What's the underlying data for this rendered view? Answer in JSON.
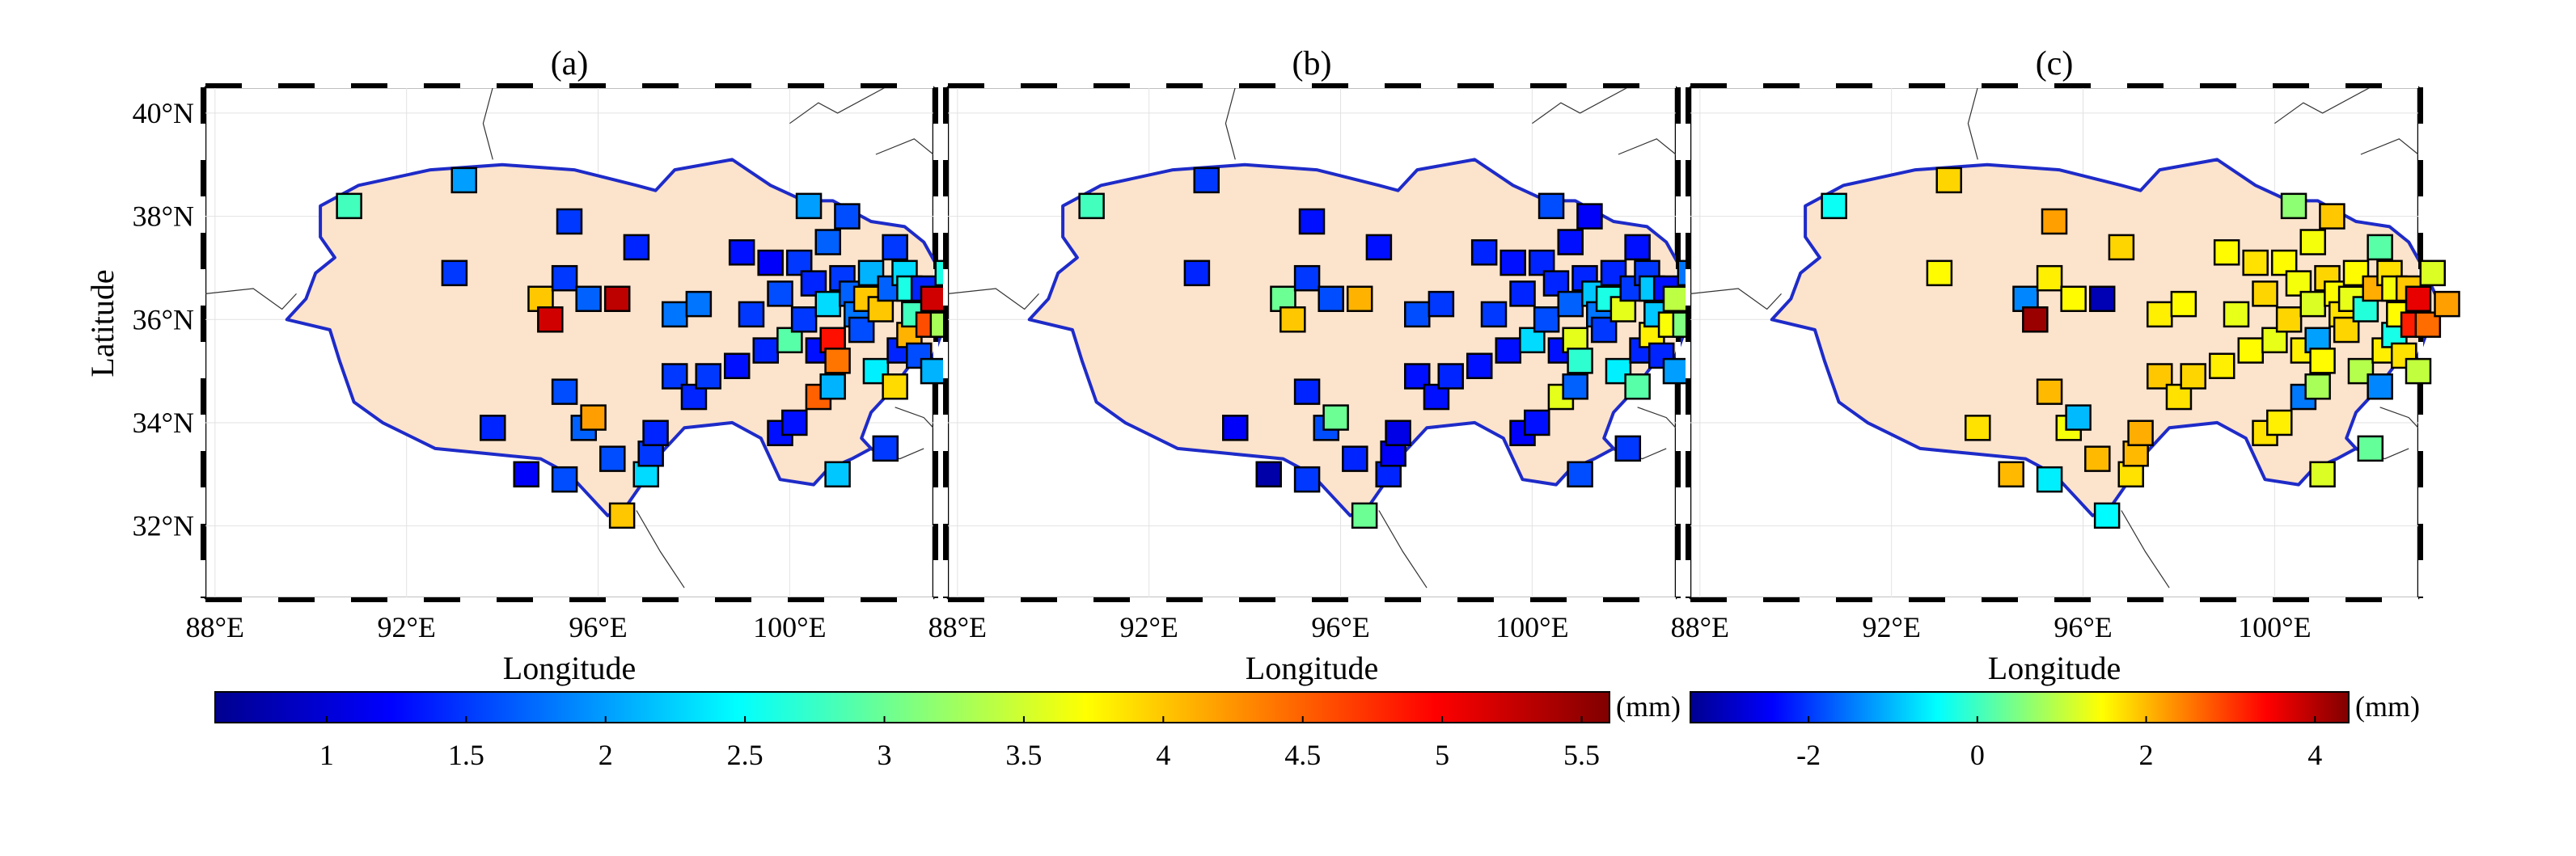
{
  "figure": {
    "panels": [
      {
        "title": "(a)",
        "colorbar": "amplitude"
      },
      {
        "title": "(b)",
        "colorbar": "amplitude"
      },
      {
        "title": "(c)",
        "colorbar": "difference"
      }
    ],
    "ylabel": "Latitude",
    "xlabel": "Longitude",
    "xticks": [
      "88°E",
      "92°E",
      "96°E",
      "100°E"
    ],
    "xtick_values": [
      88,
      92,
      96,
      100
    ],
    "yticks": [
      "40°N",
      "38°N",
      "36°N",
      "34°N",
      "32°N"
    ],
    "ytick_values": [
      40,
      38,
      36,
      34,
      32
    ],
    "lon_range": [
      87.8,
      103.0
    ],
    "lat_range": [
      30.6,
      40.5
    ],
    "region_fill": "#fce3cc",
    "region_outline": "#1e2bc8",
    "colorbars": {
      "amplitude": {
        "unit": "(mm)",
        "range": [
          0.6,
          5.6
        ],
        "ticks": [
          "1",
          "1.5",
          "2",
          "2.5",
          "3",
          "3.5",
          "4",
          "4.5",
          "5",
          "5.5"
        ],
        "tick_values": [
          1,
          1.5,
          2,
          2.5,
          3,
          3.5,
          4,
          4.5,
          5,
          5.5
        ]
      },
      "difference": {
        "unit": "(mm)",
        "range": [
          -3.4,
          4.4
        ],
        "ticks": [
          "-2",
          "0",
          "2",
          "4"
        ],
        "tick_values": [
          -2,
          0,
          2,
          4
        ]
      }
    },
    "colormap": "jet"
  },
  "chart_data": {
    "type": "scatter",
    "marker": "square",
    "x_label": "Longitude",
    "y_label": "Latitude",
    "stations": [
      {
        "lon": 90.8,
        "lat": 38.2,
        "a": 2.8,
        "b": 2.8,
        "c": -0.4
      },
      {
        "lon": 93.2,
        "lat": 38.7,
        "a": 2.0,
        "b": 1.5,
        "c": 1.8
      },
      {
        "lon": 93.0,
        "lat": 36.9,
        "a": 1.5,
        "b": 1.4,
        "c": 1.5
      },
      {
        "lon": 93.8,
        "lat": 33.9,
        "a": 1.4,
        "b": 1.2,
        "c": 1.7
      },
      {
        "lon": 94.5,
        "lat": 33.0,
        "a": 1.2,
        "b": 0.8,
        "c": 2.0
      },
      {
        "lon": 94.8,
        "lat": 36.4,
        "a": 4.0,
        "b": 3.0,
        "c": -1.4
      },
      {
        "lon": 95.0,
        "lat": 36.0,
        "a": 5.2,
        "b": 4.0,
        "c": 4.2
      },
      {
        "lon": 95.3,
        "lat": 36.8,
        "a": 1.5,
        "b": 1.5,
        "c": 1.6
      },
      {
        "lon": 95.4,
        "lat": 37.9,
        "a": 1.5,
        "b": 1.3,
        "c": 2.2
      },
      {
        "lon": 95.3,
        "lat": 34.6,
        "a": 1.6,
        "b": 1.4,
        "c": 2.0
      },
      {
        "lon": 95.3,
        "lat": 32.9,
        "a": 1.6,
        "b": 1.5,
        "c": -0.6
      },
      {
        "lon": 95.7,
        "lat": 33.9,
        "a": 1.7,
        "b": 1.6,
        "c": 1.4
      },
      {
        "lon": 95.9,
        "lat": 34.1,
        "a": 4.2,
        "b": 3.0,
        "c": -1.0
      },
      {
        "lon": 95.8,
        "lat": 36.4,
        "a": 1.7,
        "b": 1.6,
        "c": 1.5
      },
      {
        "lon": 96.4,
        "lat": 36.4,
        "a": 5.3,
        "b": 4.1,
        "c": -3.0
      },
      {
        "lon": 96.3,
        "lat": 33.3,
        "a": 1.6,
        "b": 1.4,
        "c": 2.0
      },
      {
        "lon": 96.5,
        "lat": 32.2,
        "a": 4.0,
        "b": 3.0,
        "c": -0.5
      },
      {
        "lon": 96.8,
        "lat": 37.4,
        "a": 1.4,
        "b": 1.3,
        "c": 1.8
      },
      {
        "lon": 97.0,
        "lat": 33.0,
        "a": 2.3,
        "b": 1.4,
        "c": 1.7
      },
      {
        "lon": 97.1,
        "lat": 33.4,
        "a": 1.5,
        "b": 1.2,
        "c": 2.0
      },
      {
        "lon": 97.2,
        "lat": 33.8,
        "a": 1.4,
        "b": 1.1,
        "c": 2.1
      },
      {
        "lon": 97.6,
        "lat": 36.1,
        "a": 1.8,
        "b": 1.6,
        "c": 1.6
      },
      {
        "lon": 97.6,
        "lat": 34.9,
        "a": 1.5,
        "b": 1.3,
        "c": 1.9
      },
      {
        "lon": 98.0,
        "lat": 34.5,
        "a": 1.4,
        "b": 1.3,
        "c": 1.7
      },
      {
        "lon": 98.1,
        "lat": 36.3,
        "a": 1.8,
        "b": 1.5,
        "c": 1.5
      },
      {
        "lon": 98.3,
        "lat": 34.9,
        "a": 1.5,
        "b": 1.4,
        "c": 1.8
      },
      {
        "lon": 98.9,
        "lat": 35.1,
        "a": 1.3,
        "b": 1.3,
        "c": 1.6
      },
      {
        "lon": 99.0,
        "lat": 37.3,
        "a": 1.3,
        "b": 1.4,
        "c": 1.5
      },
      {
        "lon": 99.2,
        "lat": 36.1,
        "a": 1.5,
        "b": 1.5,
        "c": 1.3
      },
      {
        "lon": 99.5,
        "lat": 35.4,
        "a": 1.4,
        "b": 1.3,
        "c": 1.5
      },
      {
        "lon": 99.6,
        "lat": 37.1,
        "a": 1.2,
        "b": 1.3,
        "c": 1.7
      },
      {
        "lon": 99.8,
        "lat": 36.5,
        "a": 1.6,
        "b": 1.4,
        "c": 1.8
      },
      {
        "lon": 99.8,
        "lat": 33.8,
        "a": 1.3,
        "b": 1.2,
        "c": 1.7
      },
      {
        "lon": 100.0,
        "lat": 35.6,
        "a": 2.9,
        "b": 2.3,
        "c": 1.3
      },
      {
        "lon": 100.1,
        "lat": 34.0,
        "a": 1.3,
        "b": 1.3,
        "c": 1.6
      },
      {
        "lon": 100.2,
        "lat": 37.1,
        "a": 1.5,
        "b": 1.4,
        "c": 1.5
      },
      {
        "lon": 100.3,
        "lat": 36.0,
        "a": 1.5,
        "b": 1.6,
        "c": 1.8
      },
      {
        "lon": 100.4,
        "lat": 38.2,
        "a": 2.0,
        "b": 1.6,
        "c": 0.6
      },
      {
        "lon": 100.5,
        "lat": 36.7,
        "a": 1.4,
        "b": 1.4,
        "c": 1.4
      },
      {
        "lon": 100.6,
        "lat": 34.5,
        "a": 4.5,
        "b": 3.6,
        "c": -1.5
      },
      {
        "lon": 100.6,
        "lat": 35.4,
        "a": 1.3,
        "b": 1.3,
        "c": 1.6
      },
      {
        "lon": 100.8,
        "lat": 36.3,
        "a": 2.3,
        "b": 1.7,
        "c": 1.2
      },
      {
        "lon": 100.8,
        "lat": 37.5,
        "a": 1.7,
        "b": 1.3,
        "c": 1.4
      },
      {
        "lon": 100.9,
        "lat": 35.6,
        "a": 4.9,
        "b": 3.6,
        "c": -1.2
      },
      {
        "lon": 100.9,
        "lat": 34.7,
        "a": 2.1,
        "b": 1.7,
        "c": 0.8
      },
      {
        "lon": 101.0,
        "lat": 33.0,
        "a": 2.2,
        "b": 1.6,
        "c": 1.2
      },
      {
        "lon": 101.0,
        "lat": 35.2,
        "a": 4.4,
        "b": 2.7,
        "c": 1.5
      },
      {
        "lon": 101.1,
        "lat": 36.8,
        "a": 1.5,
        "b": 1.4,
        "c": 1.8
      },
      {
        "lon": 101.2,
        "lat": 38.0,
        "a": 1.6,
        "b": 1.2,
        "c": 1.9
      },
      {
        "lon": 101.3,
        "lat": 36.5,
        "a": 1.7,
        "b": 2.2,
        "c": 1.5
      },
      {
        "lon": 101.4,
        "lat": 36.1,
        "a": 1.8,
        "b": 1.8,
        "c": 1.7
      },
      {
        "lon": 101.5,
        "lat": 35.8,
        "a": 1.6,
        "b": 1.5,
        "c": 1.8
      },
      {
        "lon": 101.6,
        "lat": 36.4,
        "a": 4.0,
        "b": 2.6,
        "c": 1.3
      },
      {
        "lon": 101.7,
        "lat": 36.9,
        "a": 2.1,
        "b": 1.4,
        "c": 1.5
      },
      {
        "lon": 101.8,
        "lat": 35.0,
        "a": 2.4,
        "b": 2.4,
        "c": 0.9
      },
      {
        "lon": 101.9,
        "lat": 36.2,
        "a": 4.0,
        "b": 3.6,
        "c": -0.2
      },
      {
        "lon": 102.0,
        "lat": 33.5,
        "a": 1.5,
        "b": 1.5,
        "c": 0.3
      },
      {
        "lon": 102.1,
        "lat": 36.6,
        "a": 1.7,
        "b": 1.5,
        "c": 2.1
      },
      {
        "lon": 102.2,
        "lat": 37.4,
        "a": 1.5,
        "b": 1.3,
        "c": 0.2
      },
      {
        "lon": 102.2,
        "lat": 34.7,
        "a": 3.9,
        "b": 2.9,
        "c": -1.4
      },
      {
        "lon": 102.3,
        "lat": 35.4,
        "a": 1.4,
        "b": 1.4,
        "c": 1.6
      },
      {
        "lon": 102.4,
        "lat": 36.9,
        "a": 2.3,
        "b": 1.5,
        "c": 1.7
      },
      {
        "lon": 102.5,
        "lat": 36.6,
        "a": 2.6,
        "b": 2.2,
        "c": 1.4
      },
      {
        "lon": 102.5,
        "lat": 35.7,
        "a": 4.1,
        "b": 3.8,
        "c": -0.3
      },
      {
        "lon": 102.6,
        "lat": 36.1,
        "a": 2.8,
        "b": 2.2,
        "c": 1.5
      },
      {
        "lon": 102.7,
        "lat": 35.3,
        "a": 1.6,
        "b": 1.4,
        "c": 1.7
      },
      {
        "lon": 102.8,
        "lat": 36.6,
        "a": 1.4,
        "b": 1.3,
        "c": 1.9
      },
      {
        "lon": 102.9,
        "lat": 35.9,
        "a": 4.6,
        "b": 3.7,
        "c": 3.2
      },
      {
        "lon": 103.0,
        "lat": 35.0,
        "a": 2.1,
        "b": 2.0,
        "c": 1.0
      },
      {
        "lon": 103.0,
        "lat": 36.4,
        "a": 5.2,
        "b": 3.4,
        "c": 3.6
      },
      {
        "lon": 103.2,
        "lat": 35.9,
        "a": 3.3,
        "b": 3.1,
        "c": 2.6
      },
      {
        "lon": 103.3,
        "lat": 36.9,
        "a": 2.6,
        "b": 1.8,
        "c": 1.2
      },
      {
        "lon": 103.6,
        "lat": 36.3,
        "a": 2.6,
        "b": 1.8,
        "c": 2.2
      }
    ]
  }
}
